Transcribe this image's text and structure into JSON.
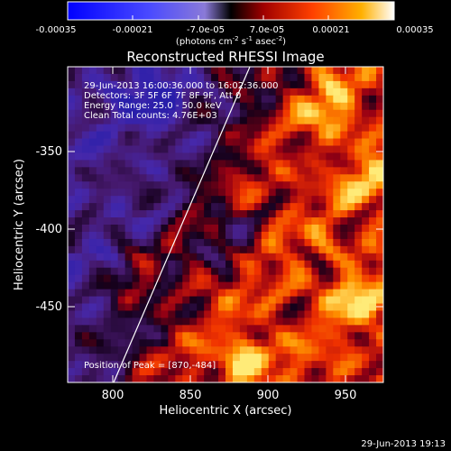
{
  "colorbar": {
    "ticks": [
      "-0.00035",
      "-0.00021",
      "-7.0e-05",
      "7.0e-05",
      "0.00021",
      "0.00035"
    ],
    "unit_prefix": "(photons cm",
    "unit_exp1": "-2",
    "unit_mid": " s",
    "unit_exp2": "-1",
    "unit_tail": " asec",
    "unit_exp3": "-2",
    "unit_close": ")"
  },
  "title": "Reconstructed RHESSI Image",
  "info": {
    "line1": "29-Jun-2013 16:00:36.000 to 16:02:36.000",
    "line2": "Detectors: 3F 5F 6F 7F 8F 9F, Att 0",
    "line3": "Energy Range: 25.0 - 50.0 keV",
    "line4": "Clean     Total counts: 4.76E+03"
  },
  "peak_label": "Position of Peak = [870,-484]",
  "axes": {
    "xlabel": "Heliocentric X (arcsec)",
    "ylabel": "Heliocentric Y (arcsec)",
    "xticks": [
      "800",
      "850",
      "900",
      "950"
    ],
    "yticks": [
      "-350",
      "-400",
      "-450"
    ]
  },
  "footer_timestamp": "29-Jun-2013 19:13",
  "colors": {
    "background": "#000000",
    "text": "#ffffff",
    "limb_line": "#ffffff"
  },
  "colormap_name": "blue-white-red"
}
